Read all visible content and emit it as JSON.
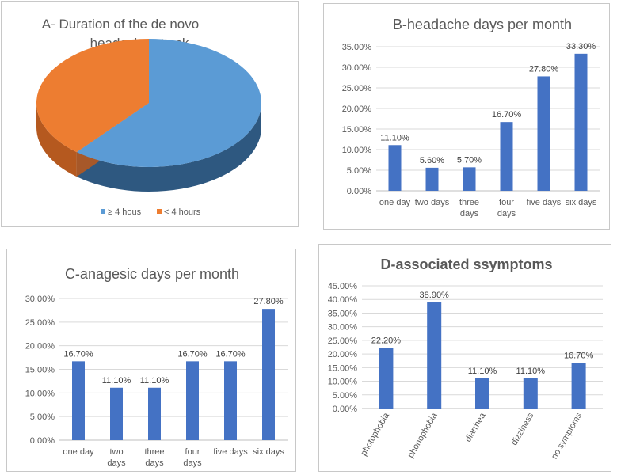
{
  "colors": {
    "bar": "#4472C4",
    "pie_blue": "#5B9BD5",
    "pie_blue_side": "#2E5880",
    "pie_orange": "#ED7D31",
    "pie_orange_side": "#B5591F",
    "grid": "#D9D9D9",
    "text": "#595959"
  },
  "chart_data": [
    {
      "id": "A",
      "type": "pie",
      "title": "A- Duration of the de novo headache attack",
      "title_lines": [
        "A- Duration of the de novo",
        "headache attack"
      ],
      "categories": [
        "≥ 4 hous",
        "< 4 hours"
      ],
      "values": [
        61.1,
        38.9
      ],
      "legend": "bottom"
    },
    {
      "id": "B",
      "type": "bar",
      "title": "B-headache days per month",
      "categories": [
        "one day",
        "two days",
        "three days",
        "four days",
        "five days",
        "six days"
      ],
      "category_lines": [
        [
          "one day"
        ],
        [
          "two days"
        ],
        [
          "three",
          "days"
        ],
        [
          "four",
          "days"
        ],
        [
          "five days"
        ],
        [
          "six days"
        ]
      ],
      "values": [
        11.1,
        5.6,
        5.7,
        16.7,
        27.8,
        33.3
      ],
      "data_labels": [
        "11.10%",
        "5.60%",
        "5.70%",
        "16.70%",
        "27.80%",
        "33.30%"
      ],
      "ylim": [
        0,
        35
      ],
      "ystep": 5,
      "ytick_labels": [
        "0.00%",
        "5.00%",
        "10.00%",
        "15.00%",
        "20.00%",
        "25.00%",
        "30.00%",
        "35.00%"
      ],
      "grid": true
    },
    {
      "id": "C",
      "type": "bar",
      "title": "C-anagesic days per month",
      "categories": [
        "one day",
        "two days",
        "three days",
        "four days",
        "five days",
        "six days"
      ],
      "category_lines": [
        [
          "one day"
        ],
        [
          "two",
          "days"
        ],
        [
          "three",
          "days"
        ],
        [
          "four",
          "days"
        ],
        [
          "five days"
        ],
        [
          "six days"
        ]
      ],
      "values": [
        16.7,
        11.1,
        11.1,
        16.7,
        16.7,
        27.8
      ],
      "data_labels": [
        "16.70%",
        "11.10%",
        "11.10%",
        "16.70%",
        "16.70%",
        "27.80%"
      ],
      "ylim": [
        0,
        30
      ],
      "ystep": 5,
      "ytick_labels": [
        "0.00%",
        "5.00%",
        "10.00%",
        "15.00%",
        "20.00%",
        "25.00%",
        "30.00%"
      ],
      "grid": true
    },
    {
      "id": "D",
      "type": "bar",
      "title": "D-associated ssymptoms",
      "categories": [
        "photophobia",
        "phonophobia",
        "diarrhea",
        "dizziness",
        "no symptoms"
      ],
      "category_lines": [
        [
          "photophobia"
        ],
        [
          "phonophobia"
        ],
        [
          "diarrhea"
        ],
        [
          "dizziness"
        ],
        [
          "no symptoms"
        ]
      ],
      "values": [
        22.2,
        38.9,
        11.1,
        11.1,
        16.7
      ],
      "data_labels": [
        "22.20%",
        "38.90%",
        "11.10%",
        "11.10%",
        "16.70%"
      ],
      "ylim": [
        0,
        45
      ],
      "ystep": 5,
      "ytick_labels": [
        "0.00%",
        "5.00%",
        "10.00%",
        "15.00%",
        "20.00%",
        "25.00%",
        "30.00%",
        "35.00%",
        "40.00%",
        "45.00%"
      ],
      "grid": true
    }
  ]
}
